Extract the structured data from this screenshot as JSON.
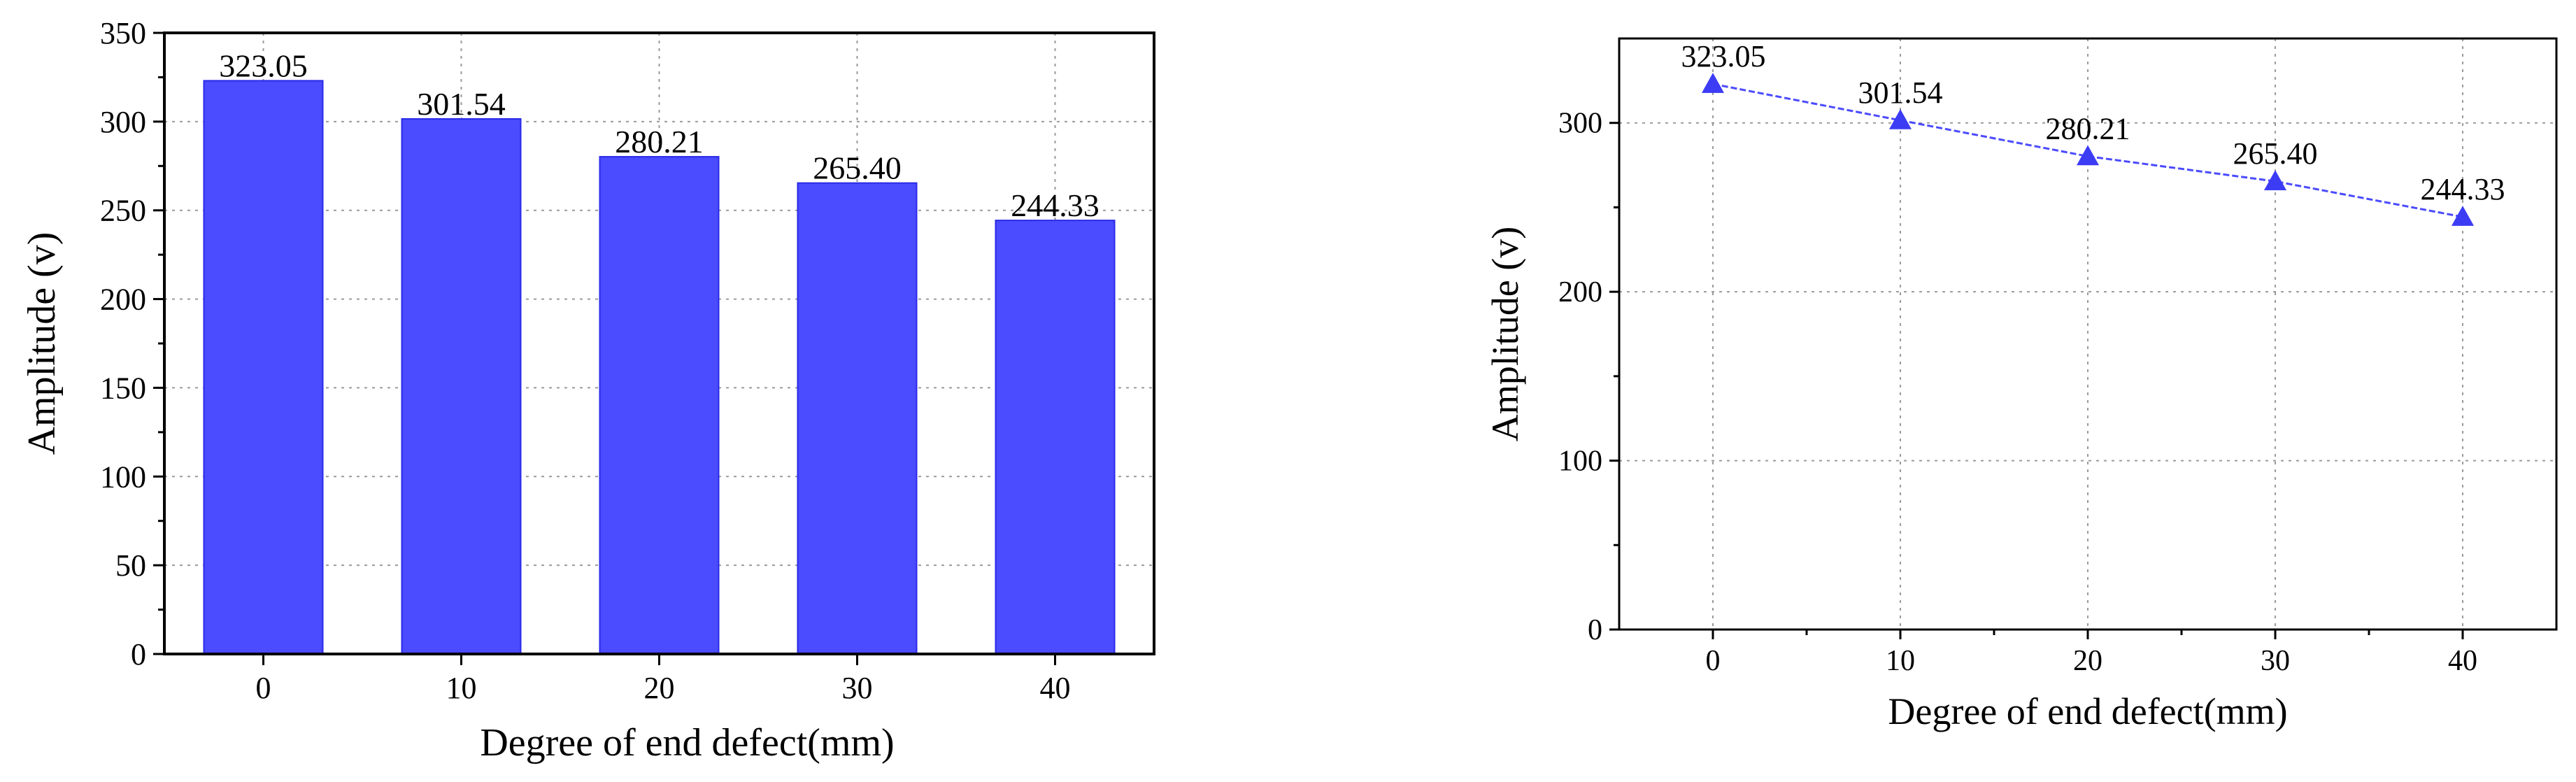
{
  "chart_data": [
    {
      "type": "bar",
      "categories": [
        "0",
        "10",
        "20",
        "30",
        "40"
      ],
      "values": [
        323.05,
        301.54,
        280.21,
        265.4,
        244.33
      ],
      "data_labels": [
        "323.05",
        "301.54",
        "280.21",
        "265.40",
        "244.33"
      ],
      "xlabel": "Degree of end defect(mm)",
      "ylabel": "Amplitude (v)",
      "ylim": [
        0,
        350
      ],
      "yticks": [
        0,
        50,
        100,
        150,
        200,
        250,
        300,
        350
      ],
      "grid": true,
      "colors": {
        "bar": "#4b4bff",
        "bar_edge": "#2a2ae8",
        "grid": "#9a9a9a"
      }
    },
    {
      "type": "line",
      "x": [
        0,
        10,
        20,
        30,
        40
      ],
      "xticks": [
        "0",
        "10",
        "20",
        "30",
        "40"
      ],
      "values": [
        323.05,
        301.54,
        280.21,
        265.4,
        244.33
      ],
      "data_labels": [
        "323.05",
        "301.54",
        "280.21",
        "265.40",
        "244.33"
      ],
      "xlabel": "Degree of end defect(mm)",
      "ylabel": "Amplitude (v)",
      "xlim": [
        -5,
        45
      ],
      "ylim": [
        0,
        350
      ],
      "yticks": [
        0,
        100,
        200,
        300
      ],
      "grid": true,
      "marker": "triangle",
      "colors": {
        "line": "#4b4bff",
        "marker": "#3c3cf5",
        "grid": "#9a9a9a"
      }
    }
  ]
}
